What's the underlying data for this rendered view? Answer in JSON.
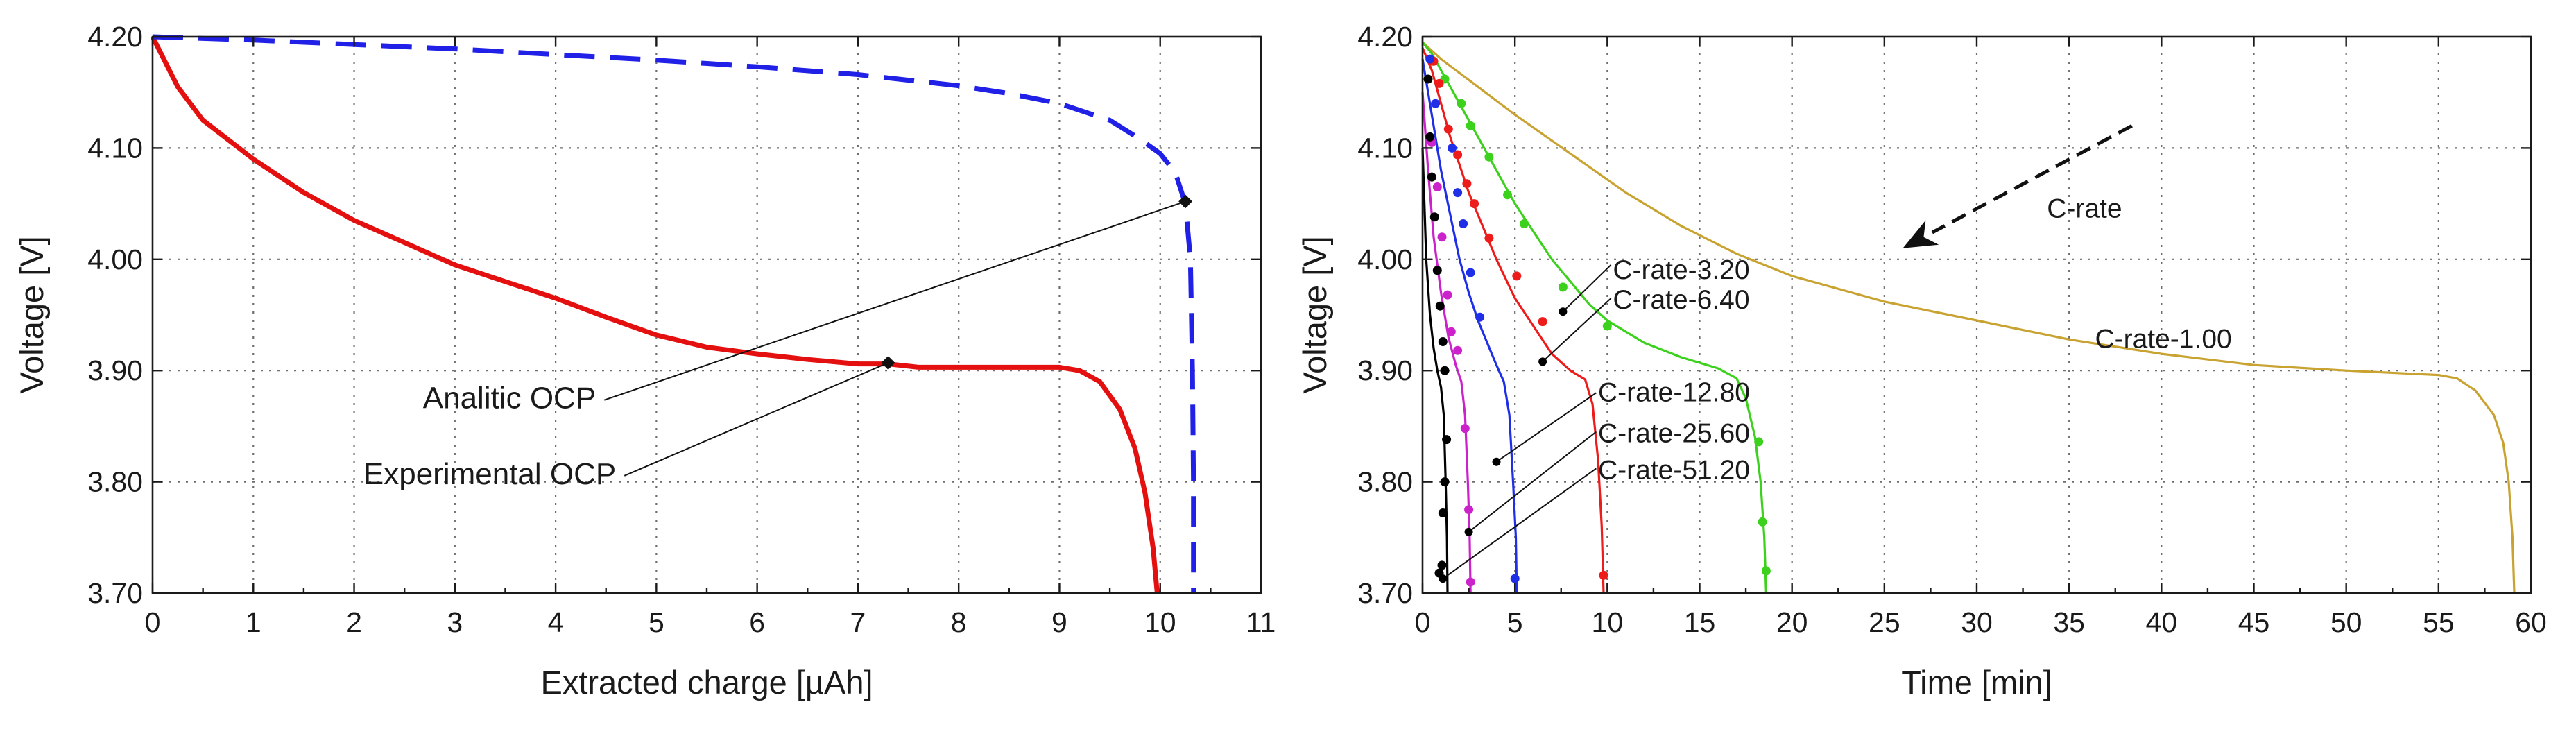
{
  "colors": {
    "experimental": "#e41010",
    "analytic": "#2020e6",
    "c1": "#c9a331",
    "c3": "#3bd11c",
    "c6": "#ee1b1b",
    "c12": "#1f2fe8",
    "c25": "#cc22cc",
    "c51": "#000000"
  },
  "chart_data": [
    {
      "type": "line",
      "xlabel": "Extracted charge [µAh]",
      "ylabel": "Voltage [V]",
      "xlim": [
        0,
        11
      ],
      "ylim": [
        3.7,
        4.2
      ],
      "xticks": [
        0,
        1,
        2,
        3,
        4,
        5,
        6,
        7,
        8,
        9,
        10,
        11
      ],
      "xtick_labels": [
        "0",
        "1",
        "2",
        "3",
        "4",
        "5",
        "6",
        "7",
        "8",
        "9",
        "10",
        "11"
      ],
      "yticks": [
        3.7,
        3.8,
        3.9,
        4.0,
        4.1,
        4.2
      ],
      "ytick_labels": [
        "3.70",
        "3.80",
        "3.90",
        "4.00",
        "4.10",
        "4.20"
      ],
      "grid": true,
      "series": [
        {
          "name": "Experimental OCP",
          "style": "solid",
          "color_key": "experimental",
          "points": [
            [
              0,
              4.2
            ],
            [
              0.25,
              4.155
            ],
            [
              0.5,
              4.125
            ],
            [
              1,
              4.09
            ],
            [
              1.5,
              4.06
            ],
            [
              2,
              4.035
            ],
            [
              2.5,
              4.015
            ],
            [
              3,
              3.995
            ],
            [
              3.5,
              3.98
            ],
            [
              4,
              3.965
            ],
            [
              4.5,
              3.948
            ],
            [
              5,
              3.932
            ],
            [
              5.5,
              3.921
            ],
            [
              6,
              3.915
            ],
            [
              6.5,
              3.91
            ],
            [
              7,
              3.906
            ],
            [
              7.3,
              3.906
            ],
            [
              7.6,
              3.903
            ],
            [
              8,
              3.903
            ],
            [
              8.5,
              3.903
            ],
            [
              9,
              3.903
            ],
            [
              9.2,
              3.9
            ],
            [
              9.4,
              3.89
            ],
            [
              9.6,
              3.865
            ],
            [
              9.75,
              3.83
            ],
            [
              9.85,
              3.79
            ],
            [
              9.93,
              3.74
            ],
            [
              9.97,
              3.7
            ]
          ]
        },
        {
          "name": "Analitic OCP",
          "style": "dashed",
          "color_key": "analytic",
          "points": [
            [
              0,
              4.2
            ],
            [
              1,
              4.197
            ],
            [
              2,
              4.193
            ],
            [
              3,
              4.189
            ],
            [
              4,
              4.184
            ],
            [
              5,
              4.179
            ],
            [
              6,
              4.173
            ],
            [
              7,
              4.166
            ],
            [
              8,
              4.156
            ],
            [
              8.5,
              4.149
            ],
            [
              9,
              4.14
            ],
            [
              9.5,
              4.125
            ],
            [
              9.8,
              4.108
            ],
            [
              10,
              4.095
            ],
            [
              10.15,
              4.078
            ],
            [
              10.25,
              4.05
            ],
            [
              10.3,
              4.0
            ],
            [
              10.32,
              3.9
            ],
            [
              10.33,
              3.8
            ],
            [
              10.33,
              3.7
            ]
          ]
        }
      ],
      "markers": [
        {
          "series": "Experimental OCP",
          "x": 7.3,
          "y": 3.907
        },
        {
          "series": "Analitic OCP",
          "x": 10.25,
          "y": 4.052
        }
      ],
      "annotations": [
        {
          "text": "Analitic OCP",
          "x": 4.4,
          "y": 3.866,
          "points_to": [
            10.25,
            4.052
          ]
        },
        {
          "text": "Experimental OCP",
          "x": 4.6,
          "y": 3.798,
          "points_to": [
            7.3,
            3.907
          ]
        }
      ]
    },
    {
      "type": "line",
      "xlabel": "Time [min]",
      "ylabel": "Voltage [V]",
      "xlim": [
        0,
        60
      ],
      "ylim": [
        3.7,
        4.2
      ],
      "xticks": [
        0,
        5,
        10,
        15,
        20,
        25,
        30,
        35,
        40,
        45,
        50,
        55,
        60
      ],
      "xtick_labels": [
        "0",
        "5",
        "10",
        "15",
        "20",
        "25",
        "30",
        "35",
        "40",
        "45",
        "50",
        "55",
        "60"
      ],
      "yticks": [
        3.7,
        3.8,
        3.9,
        4.0,
        4.1,
        4.2
      ],
      "ytick_labels": [
        "3.70",
        "3.80",
        "3.90",
        "4.00",
        "4.10",
        "4.20"
      ],
      "grid": true,
      "arrow_label": "C-rate",
      "series": [
        {
          "name": "C-rate-1.00",
          "color_key": "c1",
          "line": [
            [
              0,
              4.195
            ],
            [
              1,
              4.18
            ],
            [
              3,
              4.155
            ],
            [
              5,
              4.13
            ],
            [
              8,
              4.095
            ],
            [
              11,
              4.06
            ],
            [
              14,
              4.03
            ],
            [
              17,
              4.005
            ],
            [
              20,
              3.985
            ],
            [
              25,
              3.962
            ],
            [
              30,
              3.945
            ],
            [
              35,
              3.928
            ],
            [
              40,
              3.915
            ],
            [
              45,
              3.905
            ],
            [
              50,
              3.9
            ],
            [
              55,
              3.896
            ],
            [
              56,
              3.893
            ],
            [
              57,
              3.882
            ],
            [
              58,
              3.86
            ],
            [
              58.5,
              3.835
            ],
            [
              58.8,
              3.8
            ],
            [
              59,
              3.75
            ],
            [
              59.1,
              3.7
            ]
          ],
          "dots": []
        },
        {
          "name": "C-rate-3.20",
          "color_key": "c3",
          "line": [
            [
              0,
              4.195
            ],
            [
              0.5,
              4.185
            ],
            [
              1,
              4.17
            ],
            [
              2,
              4.14
            ],
            [
              3,
              4.11
            ],
            [
              4,
              4.08
            ],
            [
              5,
              4.05
            ],
            [
              6,
              4.025
            ],
            [
              7,
              4.0
            ],
            [
              8,
              3.98
            ],
            [
              9,
              3.96
            ],
            [
              10,
              3.945
            ],
            [
              12,
              3.925
            ],
            [
              14,
              3.912
            ],
            [
              16,
              3.902
            ],
            [
              17,
              3.893
            ],
            [
              17.5,
              3.875
            ],
            [
              18,
              3.84
            ],
            [
              18.3,
              3.8
            ],
            [
              18.5,
              3.75
            ],
            [
              18.6,
              3.7
            ]
          ],
          "dots": [
            [
              0.5,
              4.178
            ],
            [
              1.2,
              4.162
            ],
            [
              2.1,
              4.14
            ],
            [
              2.6,
              4.12
            ],
            [
              3.6,
              4.092
            ],
            [
              4.6,
              4.058
            ],
            [
              5.5,
              4.032
            ],
            [
              7.6,
              3.975
            ],
            [
              10,
              3.94
            ],
            [
              18.2,
              3.836
            ],
            [
              18.4,
              3.764
            ],
            [
              18.6,
              3.72
            ]
          ]
        },
        {
          "name": "C-rate-6.40",
          "color_key": "c6",
          "line": [
            [
              0,
              4.19
            ],
            [
              0.5,
              4.17
            ],
            [
              1,
              4.14
            ],
            [
              1.5,
              4.11
            ],
            [
              2,
              4.085
            ],
            [
              2.5,
              4.06
            ],
            [
              3,
              4.04
            ],
            [
              4,
              4.0
            ],
            [
              5,
              3.965
            ],
            [
              6,
              3.94
            ],
            [
              7,
              3.915
            ],
            [
              8,
              3.9
            ],
            [
              8.8,
              3.892
            ],
            [
              9.2,
              3.87
            ],
            [
              9.5,
              3.82
            ],
            [
              9.7,
              3.76
            ],
            [
              9.8,
              3.7
            ]
          ],
          "dots": [
            [
              0.6,
              4.178
            ],
            [
              0.9,
              4.158
            ],
            [
              1.4,
              4.117
            ],
            [
              1.9,
              4.094
            ],
            [
              2.4,
              4.068
            ],
            [
              2.8,
              4.05
            ],
            [
              3.6,
              4.019
            ],
            [
              5.1,
              3.985
            ],
            [
              6.5,
              3.944
            ],
            [
              9.8,
              3.716
            ]
          ]
        },
        {
          "name": "C-rate-12.80",
          "color_key": "c12",
          "line": [
            [
              0,
              4.18
            ],
            [
              0.5,
              4.13
            ],
            [
              1,
              4.08
            ],
            [
              1.5,
              4.04
            ],
            [
              2,
              4.0
            ],
            [
              2.5,
              3.97
            ],
            [
              3,
              3.945
            ],
            [
              3.5,
              3.925
            ],
            [
              4,
              3.905
            ],
            [
              4.4,
              3.89
            ],
            [
              4.7,
              3.86
            ],
            [
              4.9,
              3.8
            ],
            [
              5.05,
              3.75
            ],
            [
              5.1,
              3.7
            ]
          ],
          "dots": [
            [
              0.4,
              4.18
            ],
            [
              0.7,
              4.14
            ],
            [
              1.6,
              4.1
            ],
            [
              1.9,
              4.06
            ],
            [
              2.2,
              4.032
            ],
            [
              2.6,
              3.988
            ],
            [
              3.1,
              3.948
            ],
            [
              5,
              3.713
            ]
          ]
        },
        {
          "name": "C-rate-25.60",
          "color_key": "c25",
          "line": [
            [
              0,
              4.15
            ],
            [
              0.3,
              4.08
            ],
            [
              0.6,
              4.02
            ],
            [
              1,
              3.97
            ],
            [
              1.4,
              3.93
            ],
            [
              1.8,
              3.905
            ],
            [
              2.1,
              3.89
            ],
            [
              2.3,
              3.86
            ],
            [
              2.45,
              3.8
            ],
            [
              2.55,
              3.75
            ],
            [
              2.6,
              3.7
            ]
          ],
          "dots": [
            [
              0.5,
              4.105
            ],
            [
              0.8,
              4.065
            ],
            [
              1.05,
              4.02
            ],
            [
              1.35,
              3.968
            ],
            [
              1.55,
              3.935
            ],
            [
              1.9,
              3.918
            ],
            [
              2.3,
              3.848
            ],
            [
              2.5,
              3.775
            ],
            [
              2.6,
              3.71
            ]
          ]
        },
        {
          "name": "C-rate-51.20",
          "color_key": "c51",
          "line": [
            [
              0,
              4.1
            ],
            [
              0.2,
              4.0
            ],
            [
              0.4,
              3.95
            ],
            [
              0.6,
              3.92
            ],
            [
              0.8,
              3.9
            ],
            [
              1,
              3.885
            ],
            [
              1.15,
              3.86
            ],
            [
              1.25,
              3.8
            ],
            [
              1.32,
              3.75
            ],
            [
              1.35,
              3.7
            ]
          ],
          "dots": [
            [
              0.3,
              4.162
            ],
            [
              0.4,
              4.11
            ],
            [
              0.5,
              4.074
            ],
            [
              0.65,
              4.038
            ],
            [
              0.8,
              3.99
            ],
            [
              0.95,
              3.958
            ],
            [
              1.1,
              3.926
            ],
            [
              1.2,
              3.9
            ],
            [
              1.3,
              3.838
            ],
            [
              1.2,
              3.8
            ],
            [
              1.1,
              3.772
            ],
            [
              1.05,
              3.725
            ],
            [
              0.9,
              3.718
            ]
          ]
        }
      ],
      "crate_labels": [
        {
          "text": "C-rate-3.20",
          "x": 10.3,
          "y": 3.99
        },
        {
          "text": "C-rate-6.40",
          "x": 10.3,
          "y": 3.963
        },
        {
          "text": "C-rate-12.80",
          "x": 9.5,
          "y": 3.88
        },
        {
          "text": "C-rate-25.60",
          "x": 9.5,
          "y": 3.843
        },
        {
          "text": "C-rate-51.20",
          "x": 9.5,
          "y": 3.81
        },
        {
          "text": "C-rate-1.00",
          "x": 36.4,
          "y": 3.928
        }
      ],
      "leaders": [
        {
          "from": [
            10.2,
            3.995
          ],
          "to": [
            7.6,
            3.953
          ]
        },
        {
          "from": [
            10.2,
            3.965
          ],
          "to": [
            6.5,
            3.908
          ]
        },
        {
          "from": [
            9.4,
            3.88
          ],
          "to": [
            4.0,
            3.818
          ]
        },
        {
          "from": [
            9.4,
            3.845
          ],
          "to": [
            2.5,
            3.755
          ]
        },
        {
          "from": [
            9.4,
            3.812
          ],
          "to": [
            1.1,
            3.713
          ]
        }
      ],
      "arrow": {
        "from": [
          38.4,
          4.12
        ],
        "to": [
          26,
          4.01
        ]
      }
    }
  ]
}
